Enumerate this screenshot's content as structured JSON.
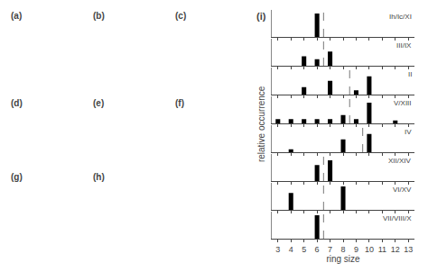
{
  "chart_data": [
    {
      "type": "bar",
      "x": [
        6
      ],
      "values": [
        1.0
      ],
      "color": "#000000",
      "xlim": [
        2.5,
        13.5
      ],
      "xticks": [
        3,
        4,
        5,
        6,
        7,
        8,
        9,
        10,
        11,
        12,
        13
      ],
      "ylim": [
        0,
        1.15
      ],
      "grid": false,
      "tick_labels": false,
      "annotations": [
        "Ih/Ic/XI"
      ],
      "vline": {
        "x": 6.5,
        "color": "#777777",
        "line_style": "dashed"
      }
    },
    {
      "type": "bar",
      "x": [
        5,
        6,
        7
      ],
      "values": [
        0.4,
        0.28,
        0.6
      ],
      "color": "#000000",
      "xlim": [
        2.5,
        13.5
      ],
      "xticks": [
        3,
        4,
        5,
        6,
        7,
        8,
        9,
        10,
        11,
        12,
        13
      ],
      "ylim": [
        0,
        1.15
      ],
      "grid": false,
      "tick_labels": false,
      "annotations": [
        "III/IX"
      ],
      "vline": {
        "x": 6.5,
        "color": "#777777",
        "line_style": "dashed"
      }
    },
    {
      "type": "bar",
      "x": [
        5,
        7,
        9,
        10
      ],
      "values": [
        0.32,
        0.58,
        0.18,
        0.78
      ],
      "color": "#000000",
      "xlim": [
        2.5,
        13.5
      ],
      "xticks": [
        3,
        4,
        5,
        6,
        7,
        8,
        9,
        10,
        11,
        12,
        13
      ],
      "ylim": [
        0,
        1.15
      ],
      "grid": false,
      "tick_labels": false,
      "annotations": [
        "II"
      ],
      "vline": {
        "x": 8.5,
        "color": "#777777",
        "line_style": "dashed"
      }
    },
    {
      "type": "bar",
      "x": [
        3,
        4,
        5,
        6,
        7,
        8,
        9,
        10,
        12
      ],
      "values": [
        0.18,
        0.18,
        0.18,
        0.18,
        0.18,
        0.35,
        0.18,
        0.88,
        0.12
      ],
      "color": "#000000",
      "xlim": [
        2.5,
        13.5
      ],
      "xticks": [
        3,
        4,
        5,
        6,
        7,
        8,
        9,
        10,
        11,
        12,
        13
      ],
      "ylim": [
        0,
        1.15
      ],
      "grid": false,
      "tick_labels": false,
      "annotations": [
        "V/XIII"
      ],
      "vline": {
        "x": 8.5,
        "color": "#777777",
        "line_style": "dashed"
      }
    },
    {
      "type": "bar",
      "x": [
        4,
        8,
        10
      ],
      "values": [
        0.12,
        0.55,
        0.78
      ],
      "color": "#000000",
      "xlim": [
        2.5,
        13.5
      ],
      "xticks": [
        3,
        4,
        5,
        6,
        7,
        8,
        9,
        10,
        11,
        12,
        13
      ],
      "ylim": [
        0,
        1.15
      ],
      "grid": false,
      "tick_labels": false,
      "annotations": [
        "IV"
      ],
      "vline": {
        "x": 9.5,
        "color": "#777777",
        "line_style": "dashed"
      }
    },
    {
      "type": "bar",
      "x": [
        6,
        7
      ],
      "values": [
        0.68,
        0.88
      ],
      "color": "#000000",
      "xlim": [
        2.5,
        13.5
      ],
      "xticks": [
        3,
        4,
        5,
        6,
        7,
        8,
        9,
        10,
        11,
        12,
        13
      ],
      "ylim": [
        0,
        1.15
      ],
      "grid": false,
      "tick_labels": false,
      "annotations": [
        "XII/XIV"
      ],
      "vline": {
        "x": 6.5,
        "color": "#777777",
        "line_style": "dashed"
      }
    },
    {
      "type": "bar",
      "x": [
        4,
        8
      ],
      "values": [
        0.72,
        1.0
      ],
      "color": "#000000",
      "xlim": [
        2.5,
        13.5
      ],
      "xticks": [
        3,
        4,
        5,
        6,
        7,
        8,
        9,
        10,
        11,
        12,
        13
      ],
      "ylim": [
        0,
        1.15
      ],
      "grid": false,
      "tick_labels": false,
      "annotations": [
        "VI/XV"
      ],
      "vline": {
        "x": 6.5,
        "color": "#777777",
        "line_style": "dashed"
      }
    },
    {
      "type": "bar",
      "x": [
        6
      ],
      "values": [
        1.0
      ],
      "color": "#000000",
      "xlim": [
        2.5,
        13.5
      ],
      "xticks": [
        3,
        4,
        5,
        6,
        7,
        8,
        9,
        10,
        11,
        12,
        13
      ],
      "ylim": [
        0,
        1.15
      ],
      "grid": false,
      "tick_labels": "x",
      "annotations": [
        "VII/VIII/X"
      ],
      "vline": {
        "x": 6.5,
        "color": "#777777",
        "line_style": "dashed"
      }
    }
  ],
  "title": "(i)",
  "xlabel": "ring size",
  "ylabel": "relative occurrence",
  "annotations": [
    "(a)",
    "(b)",
    "(c)",
    "(d)",
    "(e)",
    "(f)",
    "(g)",
    "(h)"
  ]
}
